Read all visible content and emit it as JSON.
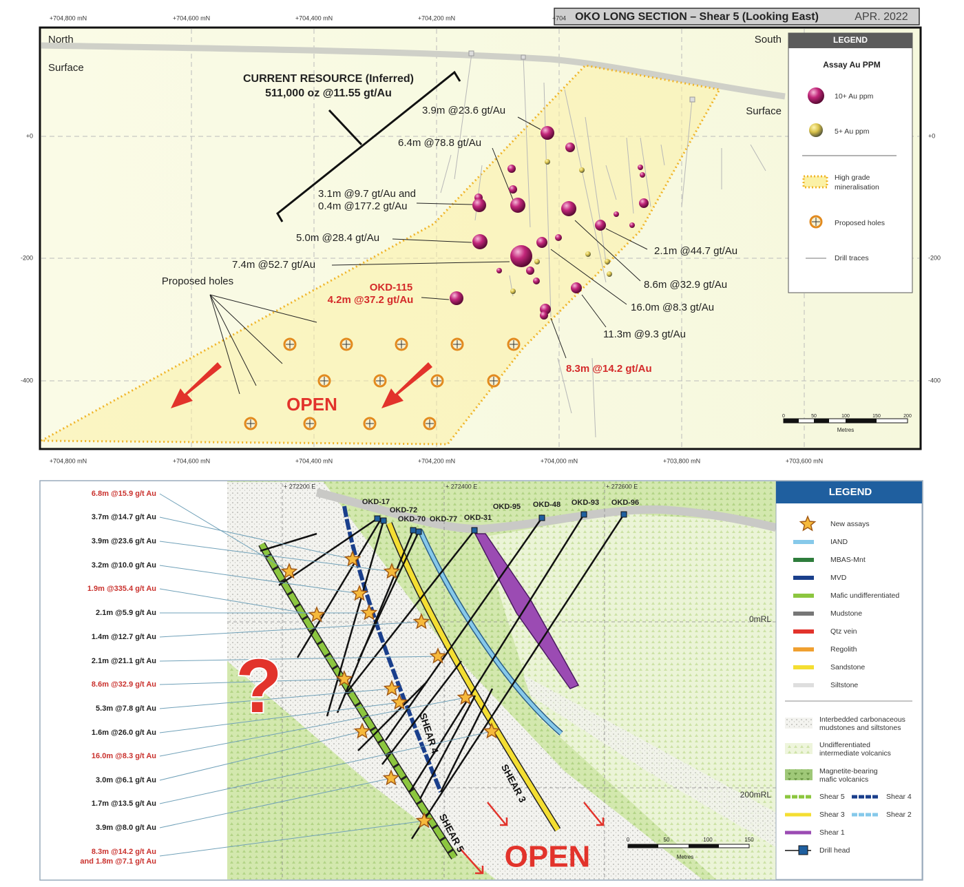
{
  "top": {
    "title": "OKO LONG SECTION – Shear 5 (Looking East)",
    "date": "APR. 2022",
    "axis_top": [
      "+704,800 mN",
      "+704,600 mN",
      "+704,400 mN",
      "+704,200 mN",
      "+704"
    ],
    "axis_bottom": [
      "+704,800 mN",
      "+704,600 mN",
      "+704,400 mN",
      "+704,200 mN",
      "+704,000 mN",
      "+703,800 mN",
      "+703,600 mN"
    ],
    "axis_left": [
      "+0",
      "-200",
      "-400"
    ],
    "axis_right": [
      "+0",
      "-200",
      "-400"
    ],
    "north": "North",
    "surface_left": "Surface",
    "south": "South",
    "surface_right": "Surface",
    "resource": [
      "CURRENT RESOURCE (Inferred)",
      "511,000 oz @11.55 gt/Au"
    ],
    "intercepts": [
      "3.9m @23.6 gt/Au",
      "6.4m @78.8 gt/Au",
      "3.1m @9.7 gt/Au and",
      "0.4m @177.2 gt/Au",
      "5.0m @28.4 gt/Au",
      "7.4m @52.7 gt/Au",
      "OKD-115",
      "4.2m @37.2 gt/Au",
      "2.1m @44.7 gt/Au",
      "8.6m @32.9 gt/Au",
      "16.0m @8.3 gt/Au",
      "11.3m @9.3 gt/Au",
      "8.3m @14.2 gt/Au"
    ],
    "proposed_holes": "Proposed holes",
    "open": "OPEN",
    "legend": {
      "title": "LEGEND",
      "subtitle": "Assay Au PPM",
      "items": [
        "10+ Au ppm",
        "5+ Au ppm",
        "High grade",
        "mineralisation",
        "Proposed holes",
        "Drill traces"
      ]
    },
    "scale": {
      "ticks": [
        "0",
        "50",
        "100",
        "150",
        "200"
      ],
      "unit": "Metres"
    }
  },
  "bottom": {
    "intercepts": [
      "6.8m @15.9 g/t Au",
      "3.7m @14.7 g/t Au",
      "3.9m @23.6 g/t Au",
      "3.2m @10.0 g/t Au",
      "1.9m @335.4 g/t Au",
      "2.1m @5.9 g/t Au",
      "1.4m @12.7 g/t Au",
      "2.1m @21.1 g/t Au",
      "8.6m @32.9 g/t Au",
      "5.3m @7.8 g/t Au",
      "1.6m @26.0 g/t Au",
      "16.0m @8.3 g/t Au",
      "3.0m @6.1 g/t Au",
      "1.7m @13.5 g/t Au",
      "3.9m @8.0 g/t Au",
      "8.3m @14.2 g/t Au",
      "and 1.8m @7.1 g/t Au"
    ],
    "eastings": [
      "+ 272200 E",
      "+ 272400 E",
      "+ 272600 E"
    ],
    "holes": [
      "OKD-17",
      "OKD-72",
      "OKD-70",
      "OKD-77",
      "OKD-31",
      "OKD-95",
      "OKD-48",
      "OKD-93",
      "OKD-96"
    ],
    "levels": [
      "0mRL",
      "200mRL"
    ],
    "shears": [
      "SHEAR 4",
      "SHEAR 3",
      "SHEAR 5"
    ],
    "open": "OPEN",
    "question": "?",
    "scale": {
      "ticks": [
        "0",
        "50",
        "100",
        "150"
      ],
      "unit": "Metres"
    },
    "legend": {
      "title": "LEGEND",
      "items": [
        "New assays",
        "IAND",
        "MBAS-Mnt",
        "MVD",
        "Mafic undifferentiated",
        "Mudstone",
        "Qtz vein",
        "Regolith",
        "Sandstone",
        "Siltstone"
      ],
      "units": [
        "Interbedded carbonaceous",
        "mudstones and siltstones",
        "Undifferentiated",
        "intermediate volcanics",
        "Magnetite-bearing",
        "mafic volcanics"
      ],
      "shears": [
        "Shear 5",
        "Shear 4",
        "Shear 3",
        "Shear 2",
        "Shear 1"
      ],
      "drill_head": "Drill head"
    }
  }
}
